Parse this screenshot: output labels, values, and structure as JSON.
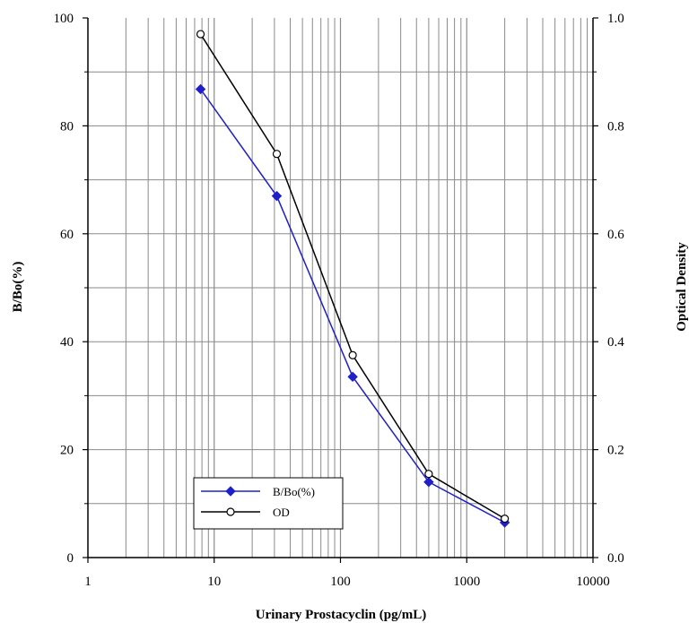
{
  "chart_data": {
    "type": "line",
    "xlabel": "Urinary Prostacyclin (pg/mL)",
    "ylabel_left": "B/Bo(%)",
    "ylabel_right": "Optical Density",
    "x_scale": "log",
    "xlim": [
      1,
      10000
    ],
    "ylim_left": [
      0,
      100
    ],
    "ylim_right": [
      0.0,
      1.0
    ],
    "x_ticks": [
      "1",
      "10",
      "100",
      "1000",
      "10000"
    ],
    "y_ticks_left": [
      "0",
      "20",
      "40",
      "60",
      "80",
      "100"
    ],
    "y_ticks_right": [
      "0.0",
      "0.2",
      "0.4",
      "0.6",
      "0.8",
      "1.0"
    ],
    "grid": true,
    "legend_position": "bottom-center",
    "series": [
      {
        "name": "B/Bo(%)",
        "axis": "left",
        "color": "#1f1fcc",
        "marker": "filled-diamond",
        "x": [
          7.8,
          31.3,
          125,
          500,
          2000
        ],
        "y": [
          86.8,
          67.0,
          33.5,
          14.0,
          6.5
        ]
      },
      {
        "name": "OD",
        "axis": "right",
        "color": "#000000",
        "marker": "open-circle",
        "x": [
          7.8,
          31.3,
          125,
          500,
          2000
        ],
        "y": [
          0.97,
          0.748,
          0.375,
          0.155,
          0.072
        ]
      }
    ]
  }
}
